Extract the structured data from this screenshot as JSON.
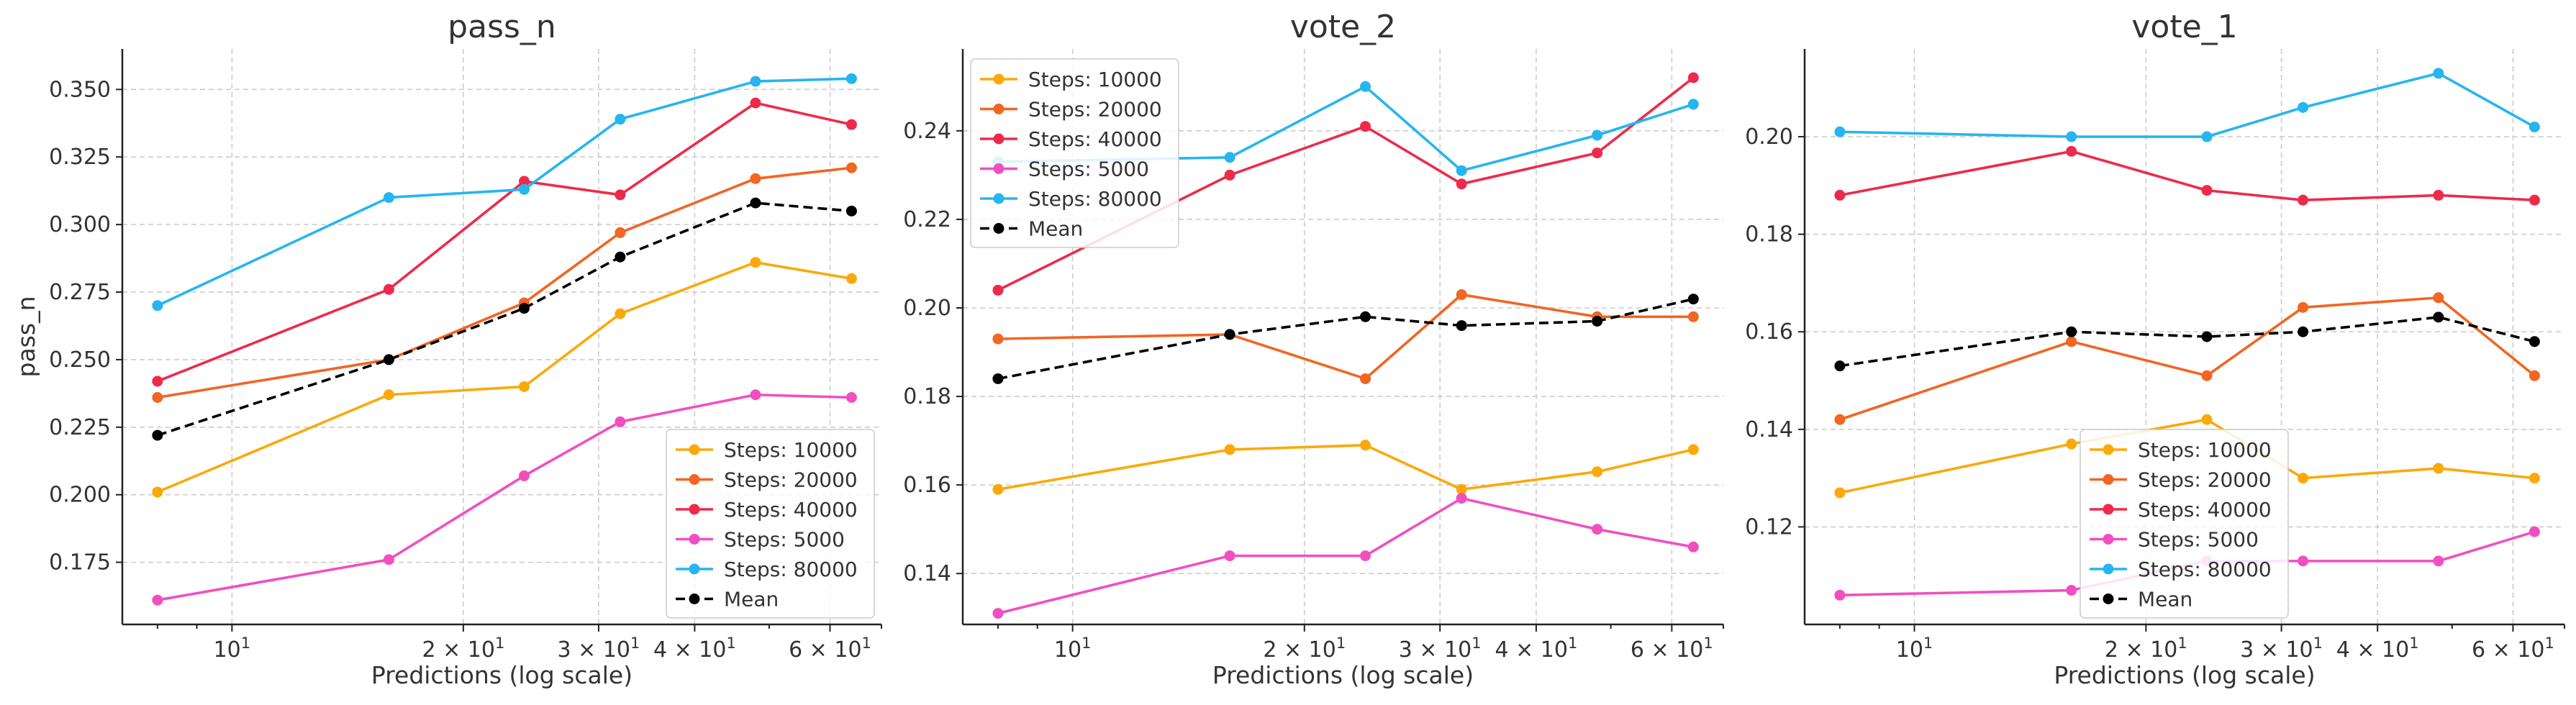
{
  "colors": {
    "Steps: 10000": "#fba90a",
    "Steps: 20000": "#f26522",
    "Steps: 40000": "#ee2a4b",
    "Steps: 5000": "#f14fc0",
    "Steps: 80000": "#26b5f0",
    "Mean": "#000000"
  },
  "chart_data": [
    {
      "type": "line",
      "title": "pass_n",
      "xlabel": "Predictions (log scale)",
      "ylabel": "pass_n",
      "xscale": "log",
      "xlim": [
        7.2,
        70
      ],
      "ylim": [
        0.152,
        0.365
      ],
      "yticks": [
        0.175,
        0.2,
        0.225,
        0.25,
        0.275,
        0.3,
        0.325,
        0.35
      ],
      "ytick_labels": [
        "0.175",
        "0.200",
        "0.225",
        "0.250",
        "0.275",
        "0.300",
        "0.325",
        "0.350"
      ],
      "xticks": [
        10,
        20,
        30,
        40,
        60
      ],
      "xtick_labels": [
        [
          "10",
          "1"
        ],
        [
          "2 × 10",
          "1"
        ],
        [
          "3 × 10",
          "1"
        ],
        [
          "4 × 10",
          "1"
        ],
        [
          "6 × 10",
          "1"
        ]
      ],
      "grid": true,
      "legend_loc": "lower right",
      "x": [
        8,
        16,
        24,
        32,
        48,
        64
      ],
      "series": [
        {
          "name": "Steps: 10000",
          "values": [
            0.201,
            0.237,
            0.24,
            0.267,
            0.286,
            0.28
          ]
        },
        {
          "name": "Steps: 20000",
          "values": [
            0.236,
            0.25,
            0.271,
            0.297,
            0.317,
            0.321
          ]
        },
        {
          "name": "Steps: 40000",
          "values": [
            0.242,
            0.276,
            0.316,
            0.311,
            0.345,
            0.337
          ]
        },
        {
          "name": "Steps: 5000",
          "values": [
            0.161,
            0.176,
            0.207,
            0.227,
            0.237,
            0.236
          ]
        },
        {
          "name": "Steps: 80000",
          "values": [
            0.27,
            0.31,
            0.313,
            0.339,
            0.353,
            0.354
          ]
        },
        {
          "name": "Mean",
          "values": [
            0.222,
            0.25,
            0.269,
            0.288,
            0.308,
            0.305
          ],
          "dashed": true
        }
      ]
    },
    {
      "type": "line",
      "title": "vote_2",
      "xlabel": "Predictions (log scale)",
      "ylabel": "",
      "xscale": "log",
      "xlim": [
        7.2,
        70
      ],
      "ylim": [
        0.1285,
        0.2585
      ],
      "yticks": [
        0.14,
        0.16,
        0.18,
        0.2,
        0.22,
        0.24
      ],
      "ytick_labels": [
        "0.14",
        "0.16",
        "0.18",
        "0.20",
        "0.22",
        "0.24"
      ],
      "xticks": [
        10,
        20,
        30,
        40,
        60
      ],
      "xtick_labels": [
        [
          "10",
          "1"
        ],
        [
          "2 × 10",
          "1"
        ],
        [
          "3 × 10",
          "1"
        ],
        [
          "4 × 10",
          "1"
        ],
        [
          "6 × 10",
          "1"
        ]
      ],
      "grid": true,
      "legend_loc": "upper left",
      "x": [
        8,
        16,
        24,
        32,
        48,
        64
      ],
      "series": [
        {
          "name": "Steps: 10000",
          "values": [
            0.159,
            0.168,
            0.169,
            0.159,
            0.163,
            0.168
          ]
        },
        {
          "name": "Steps: 20000",
          "values": [
            0.193,
            0.194,
            0.184,
            0.203,
            0.198,
            0.198
          ]
        },
        {
          "name": "Steps: 40000",
          "values": [
            0.204,
            0.23,
            0.241,
            0.228,
            0.235,
            0.252
          ]
        },
        {
          "name": "Steps: 5000",
          "values": [
            0.131,
            0.144,
            0.144,
            0.157,
            0.15,
            0.146
          ]
        },
        {
          "name": "Steps: 80000",
          "values": [
            0.233,
            0.234,
            0.25,
            0.231,
            0.239,
            0.246
          ]
        },
        {
          "name": "Mean",
          "values": [
            0.184,
            0.194,
            0.198,
            0.196,
            0.197,
            0.202
          ],
          "dashed": true
        }
      ]
    },
    {
      "type": "line",
      "title": "vote_1",
      "xlabel": "Predictions (log scale)",
      "ylabel": "",
      "xscale": "log",
      "xlim": [
        7.2,
        70
      ],
      "ylim": [
        0.1,
        0.218
      ],
      "yticks": [
        0.12,
        0.14,
        0.16,
        0.18,
        0.2
      ],
      "ytick_labels": [
        "0.12",
        "0.14",
        "0.16",
        "0.18",
        "0.20"
      ],
      "xticks": [
        10,
        20,
        30,
        40,
        60
      ],
      "xtick_labels": [
        [
          "10",
          "1"
        ],
        [
          "2 × 10",
          "1"
        ],
        [
          "3 × 10",
          "1"
        ],
        [
          "4 × 10",
          "1"
        ],
        [
          "6 × 10",
          "1"
        ]
      ],
      "grid": true,
      "legend_loc": "lower center",
      "x": [
        8,
        16,
        24,
        32,
        48,
        64
      ],
      "series": [
        {
          "name": "Steps: 10000",
          "values": [
            0.127,
            0.137,
            0.142,
            0.13,
            0.132,
            0.13
          ]
        },
        {
          "name": "Steps: 20000",
          "values": [
            0.142,
            0.158,
            0.151,
            0.165,
            0.167,
            0.151
          ]
        },
        {
          "name": "Steps: 40000",
          "values": [
            0.188,
            0.197,
            0.189,
            0.187,
            0.188,
            0.187
          ]
        },
        {
          "name": "Steps: 5000",
          "values": [
            0.106,
            0.107,
            0.113,
            0.113,
            0.113,
            0.119
          ]
        },
        {
          "name": "Steps: 80000",
          "values": [
            0.201,
            0.2,
            0.2,
            0.206,
            0.213,
            0.202
          ]
        },
        {
          "name": "Mean",
          "values": [
            0.153,
            0.16,
            0.159,
            0.16,
            0.163,
            0.158
          ],
          "dashed": true
        }
      ]
    }
  ]
}
